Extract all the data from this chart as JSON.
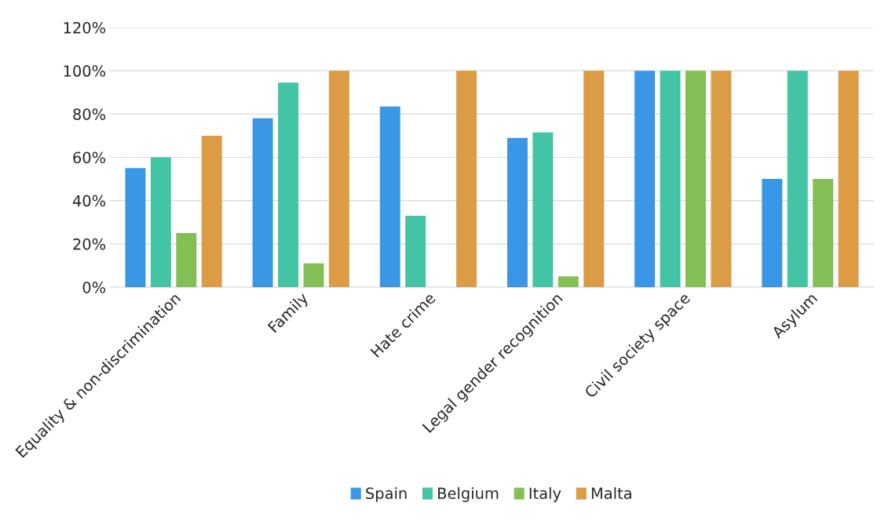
{
  "chart_data": {
    "type": "bar",
    "categories": [
      "Equality & non-discrimination",
      "Family",
      "Hate crime",
      "Legal gender recognition",
      "Civil society space",
      "Asylum"
    ],
    "series": [
      {
        "name": "Spain",
        "color": "#3a97e6",
        "values": [
          55,
          78,
          83.5,
          69,
          100,
          50
        ]
      },
      {
        "name": "Belgium",
        "color": "#43c4a4",
        "values": [
          60,
          94.5,
          33,
          71.5,
          100,
          100
        ]
      },
      {
        "name": "Italy",
        "color": "#84bf56",
        "values": [
          25,
          11,
          null,
          5,
          100,
          50
        ]
      },
      {
        "name": "Malta",
        "color": "#dc9b45",
        "values": [
          70,
          100,
          100,
          100,
          100,
          100
        ]
      }
    ],
    "ylim": [
      0,
      120
    ],
    "yticks": [
      {
        "value": 0,
        "label": "0%"
      },
      {
        "value": 20,
        "label": "20%"
      },
      {
        "value": 40,
        "label": "40%"
      },
      {
        "value": 60,
        "label": "60%"
      },
      {
        "value": 80,
        "label": "80%"
      },
      {
        "value": 100,
        "label": "100%"
      },
      {
        "value": 120,
        "label": "120%"
      }
    ],
    "grid": "y",
    "legend": "bottom"
  }
}
